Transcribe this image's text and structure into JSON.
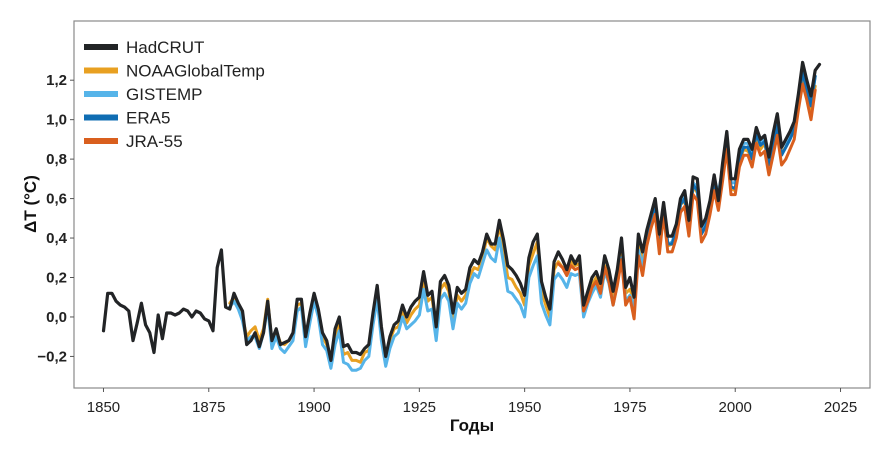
{
  "chart_data": {
    "type": "line",
    "title": "",
    "xlabel": "Годы",
    "ylabel": "ΔT (°C)",
    "xlim": [
      1843,
      2032
    ],
    "ylim": [
      -0.36,
      1.5
    ],
    "grid": false,
    "legend_position": "top-left",
    "x_ticks": [
      1850,
      1875,
      1900,
      1925,
      1950,
      1975,
      2000,
      2025
    ],
    "x_tick_labels": [
      "1850",
      "1875",
      "1900",
      "1925",
      "1950",
      "1975",
      "2000",
      "2025"
    ],
    "y_ticks": [
      -0.2,
      0.0,
      0.2,
      0.4,
      0.6,
      0.8,
      1.0,
      1.2
    ],
    "y_tick_labels": [
      "−0,2",
      "0,0",
      "0,2",
      "0,4",
      "0,6",
      "0,8",
      "1,0",
      "1,2"
    ],
    "series": [
      {
        "name": "NOAAGlobalTemp",
        "color": "#e8a021",
        "start_year": 1880,
        "values": [
          0.07,
          0.1,
          0.05,
          0.0,
          -0.1,
          -0.07,
          -0.05,
          -0.12,
          -0.06,
          0.09,
          -0.13,
          -0.07,
          -0.13,
          -0.14,
          -0.12,
          -0.09,
          0.06,
          0.07,
          -0.12,
          0.0,
          0.1,
          0.02,
          -0.1,
          -0.14,
          -0.23,
          -0.1,
          -0.03,
          -0.19,
          -0.18,
          -0.22,
          -0.22,
          -0.23,
          -0.18,
          -0.17,
          0.0,
          0.12,
          -0.08,
          -0.22,
          -0.12,
          -0.06,
          -0.05,
          0.03,
          -0.03,
          0.01,
          0.04,
          0.06,
          0.19,
          0.08,
          0.1,
          -0.07,
          0.14,
          0.17,
          0.13,
          -0.02,
          0.11,
          0.08,
          0.11,
          0.21,
          0.25,
          0.24,
          0.3,
          0.4,
          0.36,
          0.34,
          0.47,
          0.34,
          0.2,
          0.19,
          0.15,
          0.12,
          0.06,
          0.26,
          0.32,
          0.38,
          0.13,
          0.06,
          0.0,
          0.24,
          0.28,
          0.25,
          0.22,
          0.28,
          0.26,
          0.27,
          0.04,
          0.1,
          0.16,
          0.2,
          0.14,
          0.26,
          0.2,
          0.1,
          0.21,
          0.33,
          0.12,
          0.14,
          0.08,
          0.38,
          0.29,
          0.4,
          0.49,
          0.55,
          0.38,
          0.55,
          0.36,
          0.37,
          0.44,
          0.57,
          0.59,
          0.45,
          0.66,
          0.63,
          0.43,
          0.46,
          0.54,
          0.67,
          0.6,
          0.73,
          0.88,
          0.65,
          0.64,
          0.79,
          0.85,
          0.84,
          0.81,
          0.92,
          0.85,
          0.88,
          0.78,
          0.87,
          0.98,
          0.83,
          0.86,
          0.91,
          0.95,
          1.08,
          1.22,
          1.13,
          1.05,
          1.17
        ]
      },
      {
        "name": "GISTEMP",
        "color": "#56b4e9",
        "start_year": 1880,
        "values": [
          0.05,
          0.08,
          0.04,
          -0.02,
          -0.12,
          -0.1,
          -0.1,
          -0.16,
          -0.08,
          0.05,
          -0.16,
          -0.1,
          -0.16,
          -0.18,
          -0.15,
          -0.12,
          0.03,
          0.05,
          -0.15,
          -0.03,
          0.08,
          0.0,
          -0.14,
          -0.17,
          -0.26,
          -0.14,
          -0.07,
          -0.23,
          -0.24,
          -0.27,
          -0.27,
          -0.26,
          -0.22,
          -0.2,
          -0.04,
          0.09,
          -0.12,
          -0.25,
          -0.16,
          -0.1,
          -0.08,
          0.0,
          -0.06,
          -0.04,
          -0.02,
          0.01,
          0.14,
          0.03,
          0.04,
          -0.12,
          0.09,
          0.12,
          0.08,
          -0.06,
          0.07,
          0.04,
          0.07,
          0.17,
          0.22,
          0.2,
          0.27,
          0.34,
          0.3,
          0.28,
          0.4,
          0.27,
          0.13,
          0.12,
          0.09,
          0.06,
          0.0,
          0.2,
          0.26,
          0.31,
          0.07,
          0.01,
          -0.04,
          0.19,
          0.22,
          0.19,
          0.15,
          0.22,
          0.21,
          0.22,
          0.0,
          0.07,
          0.12,
          0.16,
          0.1,
          0.23,
          0.17,
          0.06,
          0.17,
          0.3,
          0.08,
          0.11,
          0.05,
          0.34,
          0.26,
          0.4,
          0.48,
          0.55,
          0.38,
          0.56,
          0.37,
          0.38,
          0.45,
          0.59,
          0.62,
          0.47,
          0.68,
          0.66,
          0.45,
          0.47,
          0.56,
          0.7,
          0.63,
          0.75,
          0.91,
          0.68,
          0.68,
          0.82,
          0.88,
          0.88,
          0.83,
          0.95,
          0.88,
          0.92,
          0.8,
          0.91,
          1.0,
          0.86,
          0.89,
          0.93,
          0.98,
          1.12,
          1.26,
          1.17,
          1.08,
          1.22
        ]
      },
      {
        "name": "ERA5",
        "color": "#0f6db3",
        "start_year": 1979,
        "values": [
          0.4,
          0.48,
          0.55,
          0.4,
          0.56,
          0.37,
          0.37,
          0.44,
          0.57,
          0.6,
          0.46,
          0.67,
          0.64,
          0.42,
          0.46,
          0.55,
          0.68,
          0.58,
          0.73,
          0.89,
          0.66,
          0.65,
          0.8,
          0.86,
          0.86,
          0.8,
          0.93,
          0.87,
          0.89,
          0.77,
          0.87,
          0.97,
          0.82,
          0.86,
          0.9,
          0.95,
          1.1,
          1.24,
          1.15,
          1.07,
          1.22
        ]
      },
      {
        "name": "JRA-55",
        "color": "#d95f1e",
        "start_year": 1958,
        "values": [
          0.27,
          0.25,
          0.21,
          0.26,
          0.24,
          0.25,
          0.03,
          0.08,
          0.15,
          0.18,
          0.12,
          0.25,
          0.18,
          0.06,
          0.16,
          0.29,
          0.06,
          0.1,
          -0.01,
          0.31,
          0.21,
          0.36,
          0.45,
          0.52,
          0.32,
          0.52,
          0.33,
          0.33,
          0.4,
          0.53,
          0.56,
          0.41,
          0.62,
          0.59,
          0.38,
          0.42,
          0.52,
          0.64,
          0.54,
          0.69,
          0.85,
          0.62,
          0.62,
          0.76,
          0.82,
          0.82,
          0.76,
          0.88,
          0.82,
          0.84,
          0.72,
          0.82,
          0.92,
          0.77,
          0.8,
          0.85,
          0.9,
          1.05,
          1.18,
          1.1,
          1.0,
          1.15
        ]
      },
      {
        "name": "HadCRUT",
        "color": "#222426",
        "start_year": 1850,
        "values": [
          -0.07,
          0.12,
          0.12,
          0.08,
          0.06,
          0.05,
          0.03,
          -0.12,
          -0.03,
          0.07,
          -0.04,
          -0.08,
          -0.18,
          0.01,
          -0.11,
          0.02,
          0.02,
          0.01,
          0.02,
          0.04,
          0.03,
          0.0,
          0.03,
          0.02,
          -0.01,
          -0.02,
          -0.07,
          0.25,
          0.34,
          0.05,
          0.04,
          0.12,
          0.07,
          0.03,
          -0.14,
          -0.12,
          -0.08,
          -0.15,
          -0.08,
          0.08,
          -0.12,
          -0.06,
          -0.14,
          -0.13,
          -0.12,
          -0.08,
          0.09,
          0.09,
          -0.1,
          0.02,
          0.12,
          0.04,
          -0.08,
          -0.12,
          -0.22,
          -0.06,
          0.0,
          -0.15,
          -0.14,
          -0.18,
          -0.18,
          -0.19,
          -0.16,
          -0.14,
          0.02,
          0.16,
          -0.05,
          -0.2,
          -0.1,
          -0.04,
          -0.02,
          0.06,
          0.0,
          0.05,
          0.08,
          0.1,
          0.23,
          0.11,
          0.13,
          -0.05,
          0.18,
          0.21,
          0.16,
          0.02,
          0.15,
          0.12,
          0.14,
          0.25,
          0.29,
          0.27,
          0.33,
          0.42,
          0.37,
          0.37,
          0.49,
          0.39,
          0.26,
          0.24,
          0.21,
          0.17,
          0.11,
          0.3,
          0.38,
          0.42,
          0.18,
          0.1,
          0.04,
          0.28,
          0.33,
          0.29,
          0.24,
          0.31,
          0.27,
          0.31,
          0.06,
          0.13,
          0.2,
          0.23,
          0.17,
          0.31,
          0.24,
          0.13,
          0.24,
          0.4,
          0.15,
          0.2,
          0.1,
          0.42,
          0.33,
          0.44,
          0.52,
          0.6,
          0.42,
          0.58,
          0.41,
          0.41,
          0.47,
          0.6,
          0.64,
          0.49,
          0.71,
          0.7,
          0.46,
          0.5,
          0.59,
          0.72,
          0.59,
          0.78,
          0.94,
          0.7,
          0.7,
          0.85,
          0.9,
          0.9,
          0.85,
          0.96,
          0.9,
          0.92,
          0.81,
          0.93,
          1.03,
          0.86,
          0.9,
          0.94,
          0.99,
          1.13,
          1.29,
          1.2,
          1.12,
          1.25,
          1.28
        ]
      }
    ],
    "legend": [
      {
        "name": "HadCRUT",
        "color": "#222426"
      },
      {
        "name": "NOAAGlobalTemp",
        "color": "#e8a021"
      },
      {
        "name": "GISTEMP",
        "color": "#56b4e9"
      },
      {
        "name": "ERA5",
        "color": "#0f6db3"
      },
      {
        "name": "JRA-55",
        "color": "#d95f1e"
      }
    ]
  }
}
